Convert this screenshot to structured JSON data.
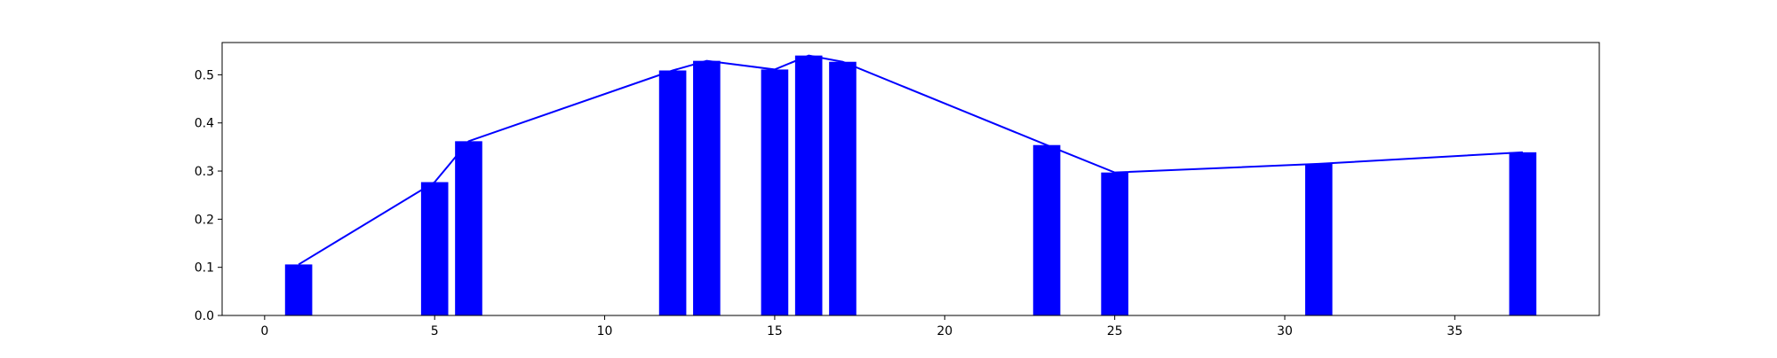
{
  "chart_data": {
    "type": "bar",
    "title": "",
    "xlabel": "",
    "ylabel": "",
    "xlim": [
      -1.25,
      39.25
    ],
    "ylim": [
      0.0,
      0.567
    ],
    "xticks": [
      0,
      5,
      10,
      15,
      20,
      25,
      30,
      35
    ],
    "yticks": [
      0.0,
      0.1,
      0.2,
      0.3,
      0.4,
      0.5
    ],
    "grid": false,
    "legend": "none",
    "bar_width": 0.8,
    "x": [
      1,
      5,
      6,
      12,
      13,
      15,
      16,
      17,
      23,
      25,
      31,
      37
    ],
    "values": [
      0.106,
      0.277,
      0.362,
      0.509,
      0.529,
      0.511,
      0.54,
      0.527,
      0.354,
      0.297,
      0.315,
      0.339
    ],
    "line": {
      "x": [
        1,
        5,
        6,
        12,
        13,
        15,
        16,
        17,
        23,
        25,
        31,
        37
      ],
      "y": [
        0.106,
        0.277,
        0.362,
        0.509,
        0.529,
        0.511,
        0.54,
        0.527,
        0.354,
        0.297,
        0.315,
        0.339
      ]
    },
    "colors": {
      "bar": "#0000ff",
      "line": "#0000ff",
      "axes": "#000000"
    }
  }
}
